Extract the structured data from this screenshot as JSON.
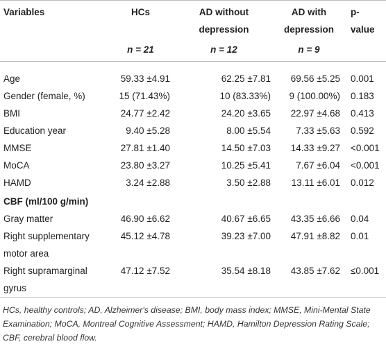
{
  "table": {
    "header": [
      [
        "Variables",
        "HCs",
        "AD without depression",
        "AD with depression",
        "p-value"
      ],
      [
        "n = 21",
        "n = 12",
        "n = 9"
      ]
    ],
    "rows": [
      [
        "Age",
        "59.33 ±4.91",
        "62.25 ±7.81",
        "69.56 ±5.25",
        "0.001"
      ],
      [
        "Gender (female, %)",
        "15 (71.43%)",
        "10 (83.33%)",
        "9 (100.00%)",
        "0.183"
      ],
      [
        "BMI",
        "24.77 ±2.42",
        "24.20 ±3.65",
        "22.97 ±4.68",
        "0.413"
      ],
      [
        "Education year",
        "9.40 ±5.28",
        "8.00 ±5.54",
        "7.33 ±5.63",
        "0.592"
      ],
      [
        "MMSE",
        "27.81 ±1.40",
        "14.50 ±7.03",
        "14.33 ±9.27",
        "<0.001"
      ],
      [
        "MoCA",
        "23.80 ±3.27",
        "10.25 ±5.41",
        "7.67 ±6.04",
        "<0.001"
      ],
      [
        "HAMD",
        "3.24 ±2.88",
        "3.50 ±2.88",
        "13.11 ±6.01",
        "0.012"
      ],
      [
        "CBF (ml/100 g/min)"
      ],
      [
        "Gray matter",
        "46.90 ±6.62",
        "40.67 ±6.65",
        "43.35 ±6.66",
        "0.04"
      ],
      [
        "Right supplementary motor area",
        "45.12 ±4.78",
        "39.23 ±7.00",
        "47.91 ±8.82",
        "0.01"
      ],
      [
        "Right supramarginal gyrus",
        "47.12 ±7.52",
        "35.54 ±8.18",
        "43.85 ±7.62",
        "≤0.001"
      ]
    ]
  },
  "footnote": "HCs, healthy controls; AD, Alzheimer's disease; BMI, body mass index; MMSE, Mini-Mental State Examination; MoCA, Montreal Cognitive Assessment; HAMD, Hamilton Depression Rating Scale; CBF, cerebral blood flow."
}
